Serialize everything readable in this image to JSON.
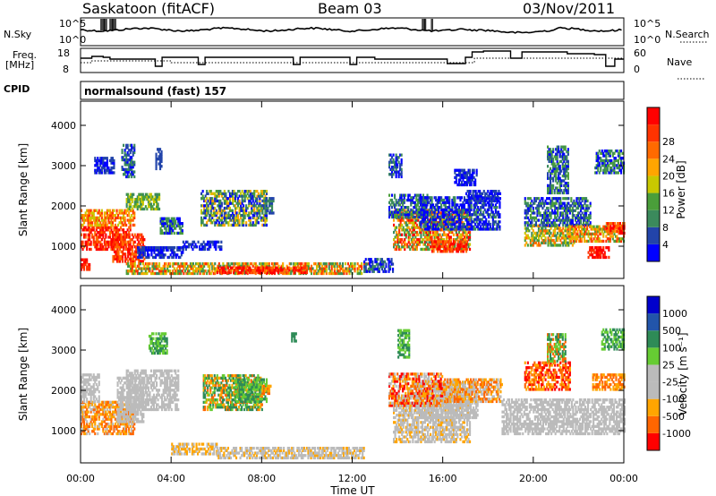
{
  "header": {
    "station": "Saskatoon (fitACF)",
    "beam": "Beam 03",
    "date": "03/Nov/2011"
  },
  "panels": {
    "noise": {
      "left_label": "N.Sky",
      "right_label": "N.Search",
      "left_ticks": [
        "10^5",
        "10^0"
      ],
      "right_ticks": [
        "10^5",
        "10^0"
      ]
    },
    "freq": {
      "left_label_1": "Freq.",
      "left_label_2": "[MHz]",
      "right_label": "Nave",
      "left_ticks": [
        "18",
        "8"
      ],
      "right_ticks": [
        "60",
        "0"
      ]
    },
    "cpid": {
      "label": "CPID",
      "text": "normalsound (fast) 157"
    }
  },
  "colors": {
    "power": [
      "#0000ff",
      "#2244aa",
      "#3b8a5c",
      "#4a9e3a",
      "#c8c800",
      "#ffa500",
      "#ff6a00",
      "#ff3300",
      "#ff0000"
    ],
    "velocity": [
      "#ff0000",
      "#ff6600",
      "#ffa500",
      "#bbbbbb",
      "#bbbbbb",
      "#66cc33",
      "#2e8b57",
      "#2255aa",
      "#0000cc"
    ]
  },
  "chart_data": [
    {
      "type": "heatmap",
      "name": "power",
      "ylabel": "Slant Range [km]",
      "colorbar_label": "Power [dB]",
      "colorbar_ticks": [
        "4",
        "8",
        "12",
        "16",
        "20",
        "24",
        "28"
      ],
      "y_ticks": [
        "1000",
        "2000",
        "3000",
        "4000"
      ],
      "ylim": [
        200,
        4600
      ],
      "xlim": [
        0,
        24
      ]
    },
    {
      "type": "heatmap",
      "name": "velocity",
      "ylabel": "Slant Range [km]",
      "colorbar_label": "Velocity [m s⁻¹]",
      "colorbar_ticks": [
        "1000",
        "500",
        "100",
        "25",
        "-25",
        "-100",
        "-500",
        "-1000"
      ],
      "y_ticks": [
        "1000",
        "2000",
        "3000",
        "4000"
      ],
      "ylim": [
        200,
        4600
      ],
      "xlim": [
        0,
        24
      ],
      "xlabel": "Time UT",
      "x_ticks": [
        "00:00",
        "04:00",
        "08:00",
        "12:00",
        "16:00",
        "20:00",
        "00:00"
      ]
    }
  ]
}
